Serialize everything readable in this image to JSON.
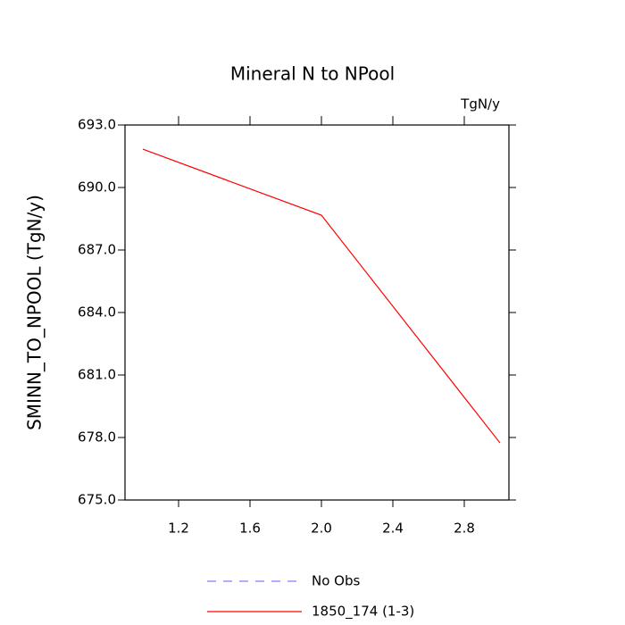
{
  "chart_data": {
    "type": "line",
    "title": "Mineral N to NPool",
    "units": "TgN/y",
    "y_label": "SMINN_TO_NPOOL  (TgN/y)",
    "x": [
      1,
      2,
      3
    ],
    "series": [
      {
        "name": "No Obs",
        "color": "#7f7fff",
        "dash": true,
        "values": [
          null,
          null,
          null
        ]
      },
      {
        "name": "1850_174 (1-3)",
        "color": "#ff0000",
        "dash": false,
        "values": [
          691.84,
          688.67,
          677.74
        ]
      }
    ],
    "xlim": [
      0.9,
      3.05
    ],
    "ylim": [
      675,
      693
    ],
    "xticks": [
      1.2,
      1.6,
      {
        "value": 2,
        "label": "2.0"
      },
      2.4,
      2.8
    ],
    "yticks": [
      {
        "value": 675,
        "label": "675.0"
      },
      {
        "value": 678,
        "label": "678.0"
      },
      {
        "value": 681,
        "label": "681.0"
      },
      {
        "value": 684,
        "label": "684.0"
      },
      {
        "value": 687,
        "label": "687.0"
      },
      {
        "value": 690,
        "label": "690.0"
      },
      {
        "value": 693,
        "label": "693.0"
      }
    ],
    "grid": false
  }
}
